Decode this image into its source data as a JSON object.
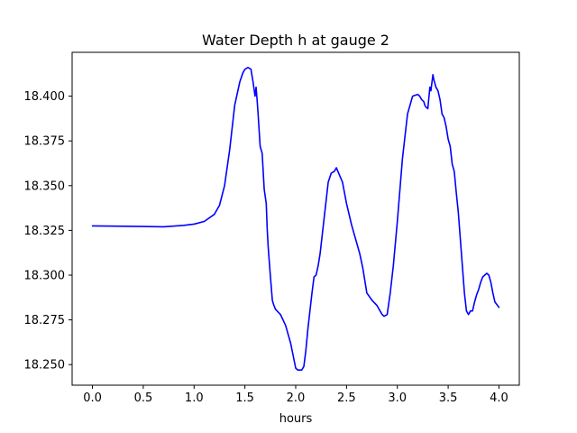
{
  "chart_data": {
    "type": "line",
    "title": "Water Depth h at gauge 2",
    "xlabel": "hours",
    "ylabel": "",
    "xlim": [
      -0.2,
      4.2
    ],
    "ylim": [
      18.2385,
      18.4245
    ],
    "grid": false,
    "colors": {
      "line": "#0000ff",
      "frame": "#000000",
      "background": "#ffffff"
    },
    "x_ticks": [
      {
        "value": 0.0,
        "label": "0.0"
      },
      {
        "value": 0.5,
        "label": "0.5"
      },
      {
        "value": 1.0,
        "label": "1.0"
      },
      {
        "value": 1.5,
        "label": "1.5"
      },
      {
        "value": 2.0,
        "label": "2.0"
      },
      {
        "value": 2.5,
        "label": "2.5"
      },
      {
        "value": 3.0,
        "label": "3.0"
      },
      {
        "value": 3.5,
        "label": "3.5"
      },
      {
        "value": 4.0,
        "label": "4.0"
      }
    ],
    "y_ticks": [
      {
        "value": 18.25,
        "label": "18.250"
      },
      {
        "value": 18.275,
        "label": "18.275"
      },
      {
        "value": 18.3,
        "label": "18.300"
      },
      {
        "value": 18.325,
        "label": "18.325"
      },
      {
        "value": 18.35,
        "label": "18.350"
      },
      {
        "value": 18.375,
        "label": "18.375"
      },
      {
        "value": 18.4,
        "label": "18.400"
      }
    ],
    "series": [
      {
        "x": [
          0.0,
          0.3,
          0.5,
          0.7,
          0.9,
          1.0,
          1.1,
          1.2,
          1.25,
          1.3,
          1.35,
          1.4,
          1.45,
          1.48,
          1.5,
          1.53,
          1.56,
          1.58,
          1.6,
          1.61,
          1.62,
          1.63,
          1.65,
          1.67,
          1.69,
          1.71,
          1.72,
          1.73,
          1.75,
          1.77,
          1.78,
          1.8,
          1.85,
          1.9,
          1.95,
          2.0,
          2.02,
          2.04,
          2.06,
          2.08,
          2.1,
          2.12,
          2.14,
          2.16,
          2.18,
          2.2,
          2.22,
          2.24,
          2.28,
          2.32,
          2.35,
          2.38,
          2.4,
          2.43,
          2.46,
          2.5,
          2.55,
          2.6,
          2.63,
          2.66,
          2.7,
          2.75,
          2.8,
          2.83,
          2.85,
          2.87,
          2.9,
          2.93,
          2.96,
          3.0,
          3.05,
          3.1,
          3.15,
          3.2,
          3.22,
          3.24,
          3.26,
          3.27,
          3.28,
          3.3,
          3.32,
          3.33,
          3.35,
          3.36,
          3.38,
          3.4,
          3.42,
          3.44,
          3.46,
          3.48,
          3.5,
          3.52,
          3.54,
          3.56,
          3.58,
          3.6,
          3.62,
          3.64,
          3.66,
          3.68,
          3.7,
          3.72,
          3.74,
          3.76,
          3.78,
          3.8,
          3.82,
          3.84,
          3.86,
          3.88,
          3.9,
          3.92,
          3.94,
          3.96,
          4.0
        ],
        "y": [
          18.3275,
          18.3273,
          18.3272,
          18.327,
          18.3278,
          18.3285,
          18.33,
          18.334,
          18.339,
          18.35,
          18.37,
          18.395,
          18.408,
          18.413,
          18.415,
          18.416,
          18.415,
          18.408,
          18.4,
          18.405,
          18.398,
          18.39,
          18.372,
          18.368,
          18.348,
          18.34,
          18.325,
          18.315,
          18.3,
          18.286,
          18.284,
          18.281,
          18.278,
          18.272,
          18.262,
          18.248,
          18.247,
          18.247,
          18.247,
          18.249,
          18.258,
          18.27,
          18.28,
          18.29,
          18.299,
          18.3,
          18.305,
          18.312,
          18.332,
          18.352,
          18.357,
          18.358,
          18.36,
          18.356,
          18.352,
          18.34,
          18.328,
          18.318,
          18.312,
          18.304,
          18.29,
          18.286,
          18.283,
          18.28,
          18.278,
          18.277,
          18.278,
          18.29,
          18.305,
          18.33,
          18.365,
          18.39,
          18.4,
          18.401,
          18.4,
          18.398,
          18.397,
          18.395,
          18.394,
          18.393,
          18.405,
          18.403,
          18.412,
          18.409,
          18.405,
          18.403,
          18.398,
          18.39,
          18.388,
          18.383,
          18.376,
          18.372,
          18.362,
          18.358,
          18.346,
          18.335,
          18.32,
          18.305,
          18.29,
          18.28,
          18.278,
          18.28,
          18.28,
          18.285,
          18.289,
          18.292,
          18.296,
          18.299,
          18.3,
          18.301,
          18.3,
          18.296,
          18.29,
          18.285,
          18.282
        ]
      }
    ]
  }
}
